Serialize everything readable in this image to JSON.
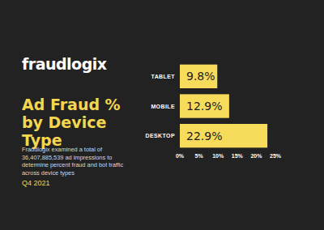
{
  "chart_data": {
    "type": "bar",
    "orientation": "horizontal",
    "title": "Ad Fraud % by Device Type",
    "subtitle": "Fraudlogix examined a total of 36,407,885,539 ad impressions to determine percent fraud and bot traffic across device types",
    "annotations": [
      "fraudlogix",
      "Q4 2021"
    ],
    "categories": [
      "TABLET",
      "MOBILE",
      "DESKTOP"
    ],
    "values": [
      9.8,
      12.9,
      22.9
    ],
    "value_labels": [
      "9.8%",
      "12.9%",
      "22.9%"
    ],
    "data_labels": true,
    "color": "#f7dc5c",
    "grid": false,
    "xlim": [
      0,
      25
    ],
    "xticks": [
      {
        "value": 0,
        "label": "0%"
      },
      {
        "value": 5,
        "label": "5%"
      },
      {
        "value": 10,
        "label": "10%"
      },
      {
        "value": 15,
        "label": "15%"
      },
      {
        "value": 20,
        "label": "20%"
      },
      {
        "value": 25,
        "label": "25%"
      }
    ]
  }
}
